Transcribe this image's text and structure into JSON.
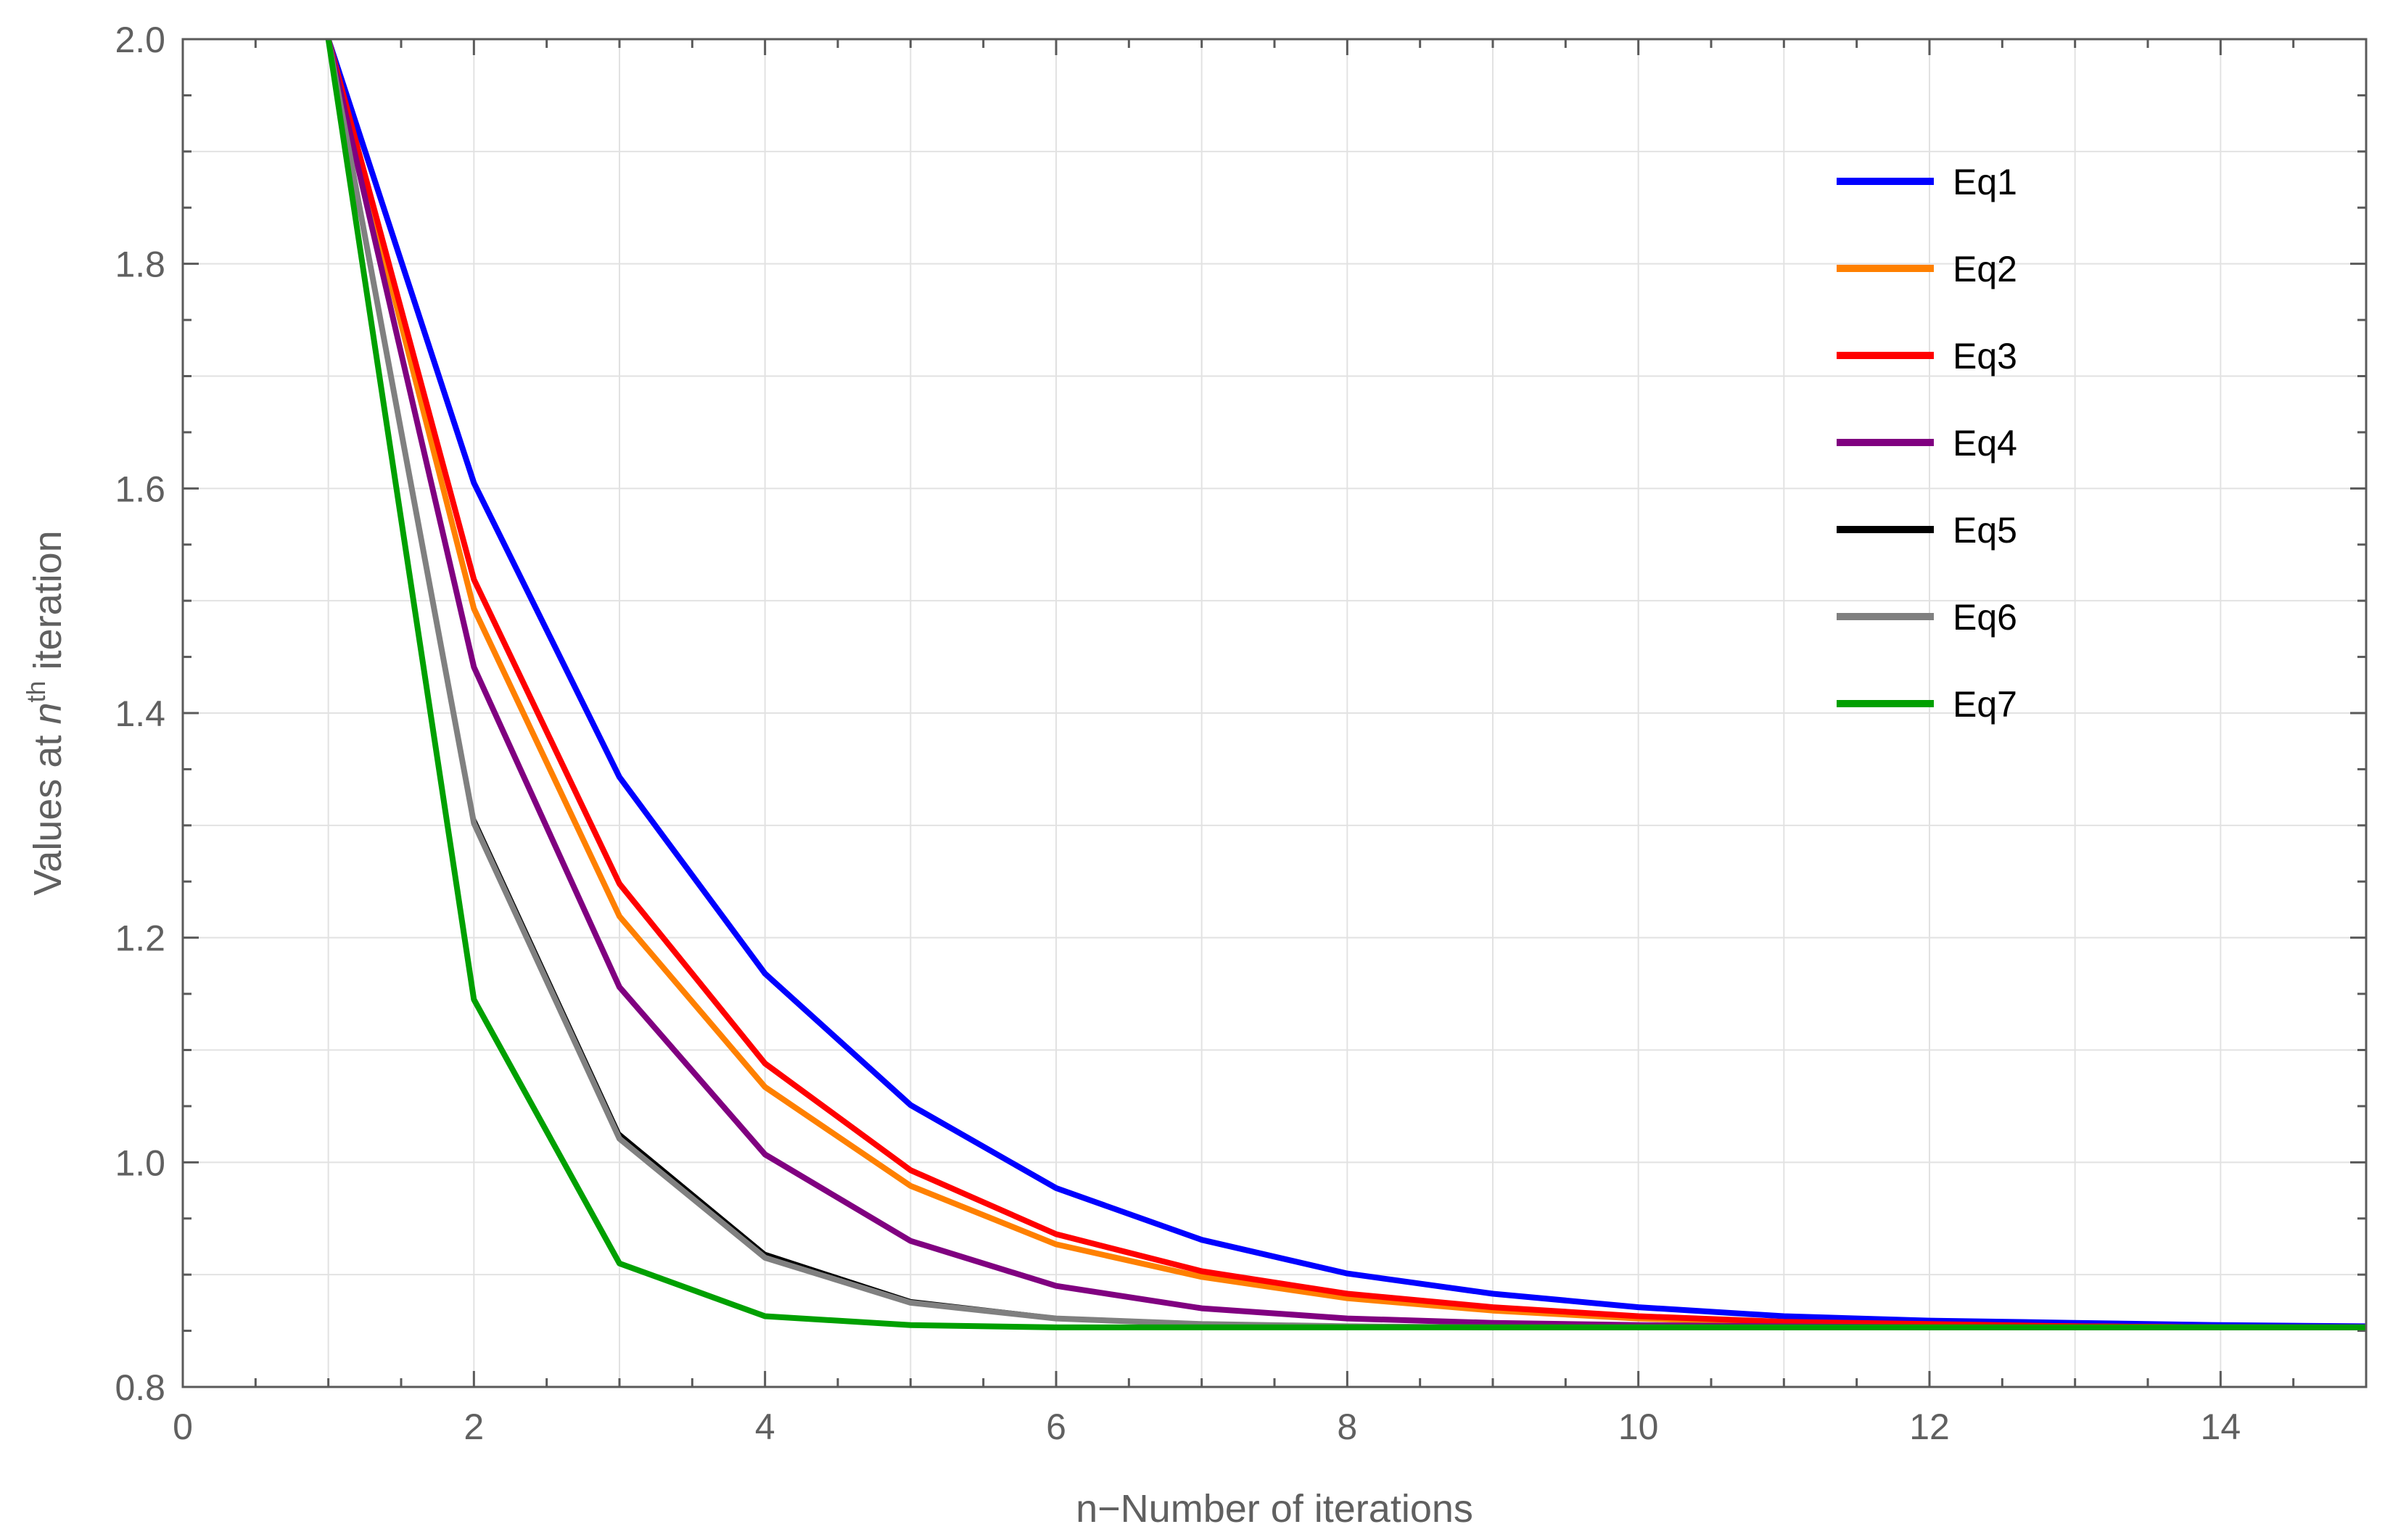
{
  "chart_data": {
    "type": "line",
    "xlabel": "n−Number of iterations",
    "ylabel": {
      "prefix": "Values at ",
      "var": "n",
      "sup": "th",
      "suffix": " iteration"
    },
    "xlim": [
      0,
      15
    ],
    "ylim": [
      0.8,
      2.0
    ],
    "xticks": [
      0,
      2,
      4,
      6,
      8,
      10,
      12,
      14
    ],
    "xtick_labels": [
      "0",
      "2",
      "4",
      "6",
      "8",
      "10",
      "12",
      "14"
    ],
    "yticks": [
      0.8,
      1.0,
      1.2,
      1.4,
      1.6,
      1.8,
      2.0
    ],
    "ytick_labels": [
      "0.8",
      "1.0",
      "1.2",
      "1.4",
      "1.6",
      "1.8",
      "2.0"
    ],
    "grid": true,
    "legend_position": "top-right",
    "x": [
      1,
      2,
      3,
      4,
      5,
      6,
      7,
      8,
      9,
      10,
      11,
      12,
      13,
      14,
      15
    ],
    "series": [
      {
        "name": "Eq1",
        "color": "#0000ff",
        "values": [
          2.0,
          1.605,
          1.343,
          1.168,
          1.051,
          0.977,
          0.931,
          0.901,
          0.883,
          0.871,
          0.863,
          0.859,
          0.857,
          0.855,
          0.854
        ]
      },
      {
        "name": "Eq2",
        "color": "#ff8000",
        "values": [
          2.0,
          1.493,
          1.219,
          1.067,
          0.979,
          0.927,
          0.898,
          0.879,
          0.868,
          0.861,
          0.857,
          0.855,
          0.854,
          0.853,
          0.853
        ]
      },
      {
        "name": "Eq3",
        "color": "#ff0000",
        "values": [
          2.0,
          1.519,
          1.248,
          1.088,
          0.993,
          0.936,
          0.903,
          0.883,
          0.871,
          0.863,
          0.858,
          0.856,
          0.854,
          0.853,
          0.853
        ]
      },
      {
        "name": "Eq4",
        "color": "#800080",
        "values": [
          2.0,
          1.441,
          1.156,
          1.007,
          0.93,
          0.89,
          0.87,
          0.861,
          0.857,
          0.855,
          0.854,
          0.853,
          0.853,
          0.853,
          0.853
        ]
      },
      {
        "name": "Eq5",
        "color": "#000000",
        "values": [
          2.0,
          1.307,
          1.026,
          0.919,
          0.877,
          0.862,
          0.857,
          0.855,
          0.854,
          0.853,
          0.853,
          0.853,
          0.853,
          0.853,
          0.853
        ]
      },
      {
        "name": "Eq6",
        "color": "#808080",
        "values": [
          2.0,
          1.302,
          1.021,
          0.915,
          0.875,
          0.861,
          0.856,
          0.854,
          0.853,
          0.853,
          0.853,
          0.853,
          0.853,
          0.853,
          0.853
        ]
      },
      {
        "name": "Eq7",
        "color": "#00a000",
        "values": [
          2.0,
          1.145,
          0.91,
          0.863,
          0.855,
          0.853,
          0.853,
          0.853,
          0.853,
          0.853,
          0.853,
          0.853,
          0.853,
          0.853,
          0.853
        ]
      }
    ]
  }
}
